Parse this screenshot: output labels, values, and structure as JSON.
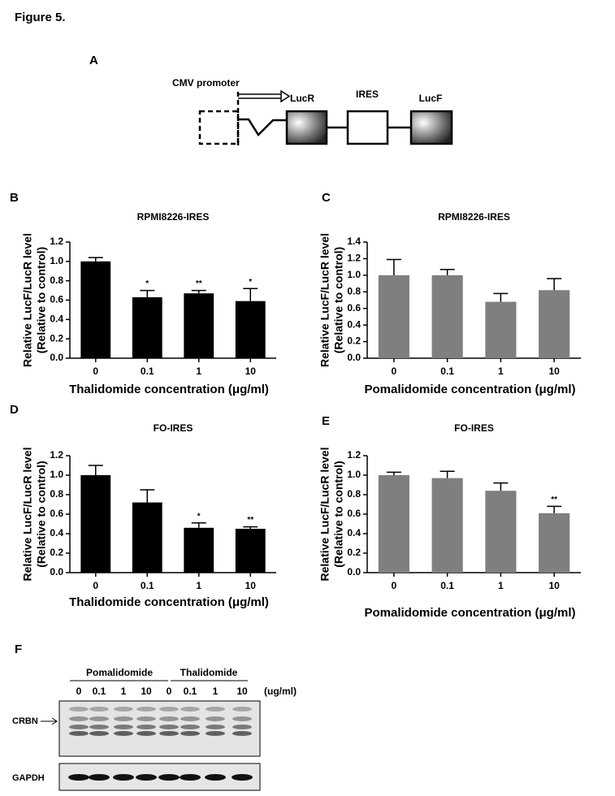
{
  "figure_title": "Figure 5.",
  "diagram": {
    "panel_label": "A",
    "promoter": "CMV promoter",
    "elements": [
      "LucR",
      "IRES",
      "LucF"
    ]
  },
  "chart_data": [
    {
      "panel_label": "B",
      "type": "bar",
      "title": "RPMI8226-IRES",
      "ylabel": [
        "Relative LucF/LucR level",
        "(Relative to control)"
      ],
      "xlabel": "Thalidomide concentration (μg/ml)",
      "categories": [
        "0",
        "0.1",
        "1",
        "10"
      ],
      "values": [
        1.0,
        0.63,
        0.67,
        0.59
      ],
      "errors": [
        0.04,
        0.07,
        0.03,
        0.13
      ],
      "annotations": [
        null,
        "*",
        "**",
        "*"
      ],
      "color": "#000000",
      "ylim": [
        0,
        1.2
      ],
      "yticks": [
        {
          "value": 0,
          "label": "0.0"
        },
        {
          "value": 0.2,
          "label": "0.2"
        },
        {
          "value": 0.4,
          "label": "0.4"
        },
        {
          "value": 0.6,
          "label": "0.6"
        },
        {
          "value": 0.8,
          "label": "0.8"
        },
        {
          "value": 1.0,
          "label": "1.0"
        },
        {
          "value": 1.2,
          "label": "1.2"
        }
      ]
    },
    {
      "panel_label": "C",
      "type": "bar",
      "title": "RPMI8226-IRES",
      "ylabel": [
        "Relative LucF/LucR level",
        "(Relative to control)"
      ],
      "xlabel": "Pomalidomide concentration (μg/ml)",
      "categories": [
        "0",
        "0.1",
        "1",
        "10"
      ],
      "values": [
        1.0,
        1.0,
        0.68,
        0.82
      ],
      "errors": [
        0.19,
        0.07,
        0.1,
        0.14
      ],
      "color": "#7f7f7f",
      "ylim": [
        0,
        1.4
      ],
      "yticks": [
        {
          "value": 0,
          "label": "0.0"
        },
        {
          "value": 0.2,
          "label": "0.2"
        },
        {
          "value": 0.4,
          "label": "0.4"
        },
        {
          "value": 0.6,
          "label": "0.6"
        },
        {
          "value": 0.8,
          "label": "0.8"
        },
        {
          "value": 1.0,
          "label": "1.0"
        },
        {
          "value": 1.2,
          "label": "1.2"
        },
        {
          "value": 1.4,
          "label": "1.4"
        }
      ]
    },
    {
      "panel_label": "D",
      "type": "bar",
      "title": "FO-IRES",
      "ylabel": [
        "Relative LucF/LucR level",
        "(Relative to control)"
      ],
      "xlabel": "Thalidomide concentration (μg/ml)",
      "categories": [
        "0",
        "0.1",
        "1",
        "10"
      ],
      "values": [
        1.0,
        0.72,
        0.46,
        0.45
      ],
      "errors": [
        0.1,
        0.13,
        0.05,
        0.02
      ],
      "annotations": [
        null,
        null,
        "*",
        "**"
      ],
      "color": "#000000",
      "ylim": [
        0,
        1.2
      ],
      "yticks": [
        {
          "value": 0,
          "label": "0.0"
        },
        {
          "value": 0.2,
          "label": "0.2"
        },
        {
          "value": 0.4,
          "label": "0.4"
        },
        {
          "value": 0.6,
          "label": "0.6"
        },
        {
          "value": 0.8,
          "label": "0.8"
        },
        {
          "value": 1.0,
          "label": "1.0"
        },
        {
          "value": 1.2,
          "label": "1.2"
        }
      ]
    },
    {
      "panel_label": "E",
      "type": "bar",
      "title": "FO-IRES",
      "ylabel": [
        "Relative LucF/LucR level",
        "(Relative to control)"
      ],
      "xlabel": "Pomalidomide concentration (μg/ml)",
      "categories": [
        "0",
        "0.1",
        "1",
        "10"
      ],
      "values": [
        1.0,
        0.97,
        0.84,
        0.61
      ],
      "errors": [
        0.03,
        0.07,
        0.08,
        0.07
      ],
      "annotations": [
        null,
        null,
        null,
        "**"
      ],
      "color": "#7f7f7f",
      "ylim": [
        0,
        1.2
      ],
      "yticks": [
        {
          "value": 0,
          "label": "0.0"
        },
        {
          "value": 0.2,
          "label": "0.2"
        },
        {
          "value": 0.4,
          "label": "0.4"
        },
        {
          "value": 0.6,
          "label": "0.6"
        },
        {
          "value": 0.8,
          "label": "0.8"
        },
        {
          "value": 1.0,
          "label": "1.0"
        },
        {
          "value": 1.2,
          "label": "1.2"
        }
      ]
    }
  ],
  "blot": {
    "panel_label": "F",
    "groups": [
      "Pomalidomide",
      "Thalidomide"
    ],
    "lanes": [
      "0",
      "0.1",
      "1",
      "10",
      "0",
      "0.1",
      "1",
      "10"
    ],
    "unit": "(ug/ml)",
    "rows": [
      "CRBN",
      "GAPDH"
    ]
  }
}
